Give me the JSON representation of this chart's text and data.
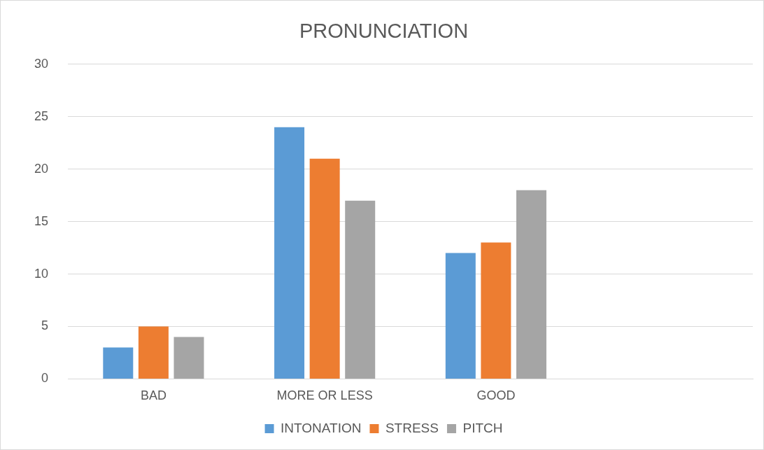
{
  "chart_data": {
    "type": "bar",
    "title": "PRONUNCIATION",
    "categories": [
      "BAD",
      "MORE OR LESS",
      "GOOD",
      null
    ],
    "series": [
      {
        "name": "INTONATION",
        "color": "#5b9bd5",
        "values": [
          3,
          24,
          12,
          null
        ]
      },
      {
        "name": "STRESS",
        "color": "#ed7d31",
        "values": [
          5,
          21,
          13,
          null
        ]
      },
      {
        "name": "PITCH",
        "color": "#a5a5a5",
        "values": [
          4,
          17,
          18,
          null
        ]
      }
    ],
    "ylim": [
      0,
      30
    ],
    "yticks": [
      0,
      5,
      10,
      15,
      20,
      25,
      30
    ],
    "grid": "y",
    "legend": "bottom"
  }
}
